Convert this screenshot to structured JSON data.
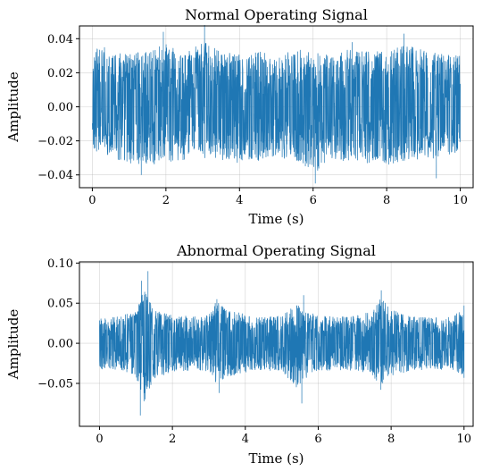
{
  "chart_data": [
    {
      "type": "line",
      "title": "Normal Operating Signal",
      "xlabel": "Time (s)",
      "ylabel": "Amplitude",
      "xlim": [
        -0.35,
        10.35
      ],
      "ylim": [
        -0.0475,
        0.0475
      ],
      "xticks": [
        0,
        2,
        4,
        6,
        8,
        10
      ],
      "xtick_labels": [
        "0",
        "2",
        "4",
        "6",
        "8",
        "10"
      ],
      "yticks": [
        -0.04,
        -0.02,
        0.0,
        0.02,
        0.04
      ],
      "ytick_labels": [
        "−0.04",
        "−0.02",
        "0.00",
        "0.02",
        "0.04"
      ],
      "grid": true,
      "color": "#1f77b4",
      "series": [
        {
          "x_range": [
            0,
            10
          ],
          "envelope": {
            "t": [
              0,
              0.5,
              1,
              1.5,
              2,
              2.5,
              3,
              3.5,
              4,
              4.5,
              5,
              5.5,
              6,
              6.5,
              7,
              7.5,
              8,
              8.5,
              9,
              9.5,
              10
            ],
            "upper": [
              0.035,
              0.032,
              0.031,
              0.033,
              0.037,
              0.031,
              0.04,
              0.032,
              0.031,
              0.033,
              0.03,
              0.034,
              0.032,
              0.031,
              0.034,
              0.033,
              0.032,
              0.037,
              0.033,
              0.031,
              0.03
            ],
            "lower": [
              -0.025,
              -0.03,
              -0.033,
              -0.034,
              -0.033,
              -0.031,
              -0.032,
              -0.031,
              -0.033,
              -0.032,
              -0.03,
              -0.031,
              -0.04,
              -0.031,
              -0.032,
              -0.033,
              -0.034,
              -0.032,
              -0.031,
              -0.03,
              -0.026
            ]
          },
          "peaks": [
            {
              "x": 1.93,
              "y": 0.044
            },
            {
              "x": 3.05,
              "y": 0.048
            },
            {
              "x": 0.33,
              "y": 0.035
            },
            {
              "x": 1.33,
              "y": -0.04
            },
            {
              "x": 6.06,
              "y": -0.045
            },
            {
              "x": 7.06,
              "y": 0.038
            },
            {
              "x": 8.47,
              "y": 0.043
            },
            {
              "x": 9.35,
              "y": -0.042
            }
          ]
        }
      ]
    },
    {
      "type": "line",
      "title": "Abnormal Operating Signal",
      "xlabel": "Time (s)",
      "ylabel": "Amplitude",
      "xlim": [
        -0.55,
        10.25
      ],
      "ylim": [
        -0.1035,
        0.1015
      ],
      "xticks": [
        0,
        2,
        4,
        6,
        8,
        10
      ],
      "xtick_labels": [
        "0",
        "2",
        "4",
        "6",
        "8",
        "10"
      ],
      "yticks": [
        -0.05,
        0.0,
        0.05,
        0.1
      ],
      "ytick_labels": [
        "−0.05",
        "0.00",
        "0.05",
        "0.10"
      ],
      "grid": true,
      "color": "#1f77b4",
      "series": [
        {
          "x_range": [
            0,
            10
          ],
          "envelope": {
            "t": [
              0,
              0.5,
              1,
              1.2,
              1.5,
              2,
              2.5,
              3,
              3.2,
              3.5,
              4,
              4.5,
              5,
              5.4,
              5.6,
              6,
              6.5,
              7,
              7.5,
              7.7,
              8,
              8.5,
              9,
              9.5,
              10
            ],
            "upper": [
              0.032,
              0.033,
              0.04,
              0.07,
              0.042,
              0.035,
              0.034,
              0.035,
              0.052,
              0.045,
              0.036,
              0.033,
              0.034,
              0.05,
              0.04,
              0.035,
              0.033,
              0.034,
              0.04,
              0.058,
              0.042,
              0.034,
              0.032,
              0.033,
              0.042
            ],
            "lower": [
              -0.032,
              -0.033,
              -0.04,
              -0.075,
              -0.045,
              -0.036,
              -0.034,
              -0.035,
              -0.05,
              -0.042,
              -0.036,
              -0.034,
              -0.034,
              -0.058,
              -0.045,
              -0.036,
              -0.033,
              -0.034,
              -0.04,
              -0.055,
              -0.04,
              -0.035,
              -0.032,
              -0.033,
              -0.04
            ]
          },
          "peaks": [
            {
              "x": 1.15,
              "y": 0.078
            },
            {
              "x": 1.33,
              "y": 0.09
            },
            {
              "x": 1.12,
              "y": -0.09
            },
            {
              "x": 3.22,
              "y": 0.055
            },
            {
              "x": 3.28,
              "y": -0.062
            },
            {
              "x": 5.6,
              "y": 0.06
            },
            {
              "x": 5.55,
              "y": -0.075
            },
            {
              "x": 7.73,
              "y": 0.066
            },
            {
              "x": 7.72,
              "y": -0.058
            },
            {
              "x": 10.0,
              "y": 0.047
            },
            {
              "x": 10.0,
              "y": -0.043
            }
          ]
        }
      ]
    }
  ]
}
